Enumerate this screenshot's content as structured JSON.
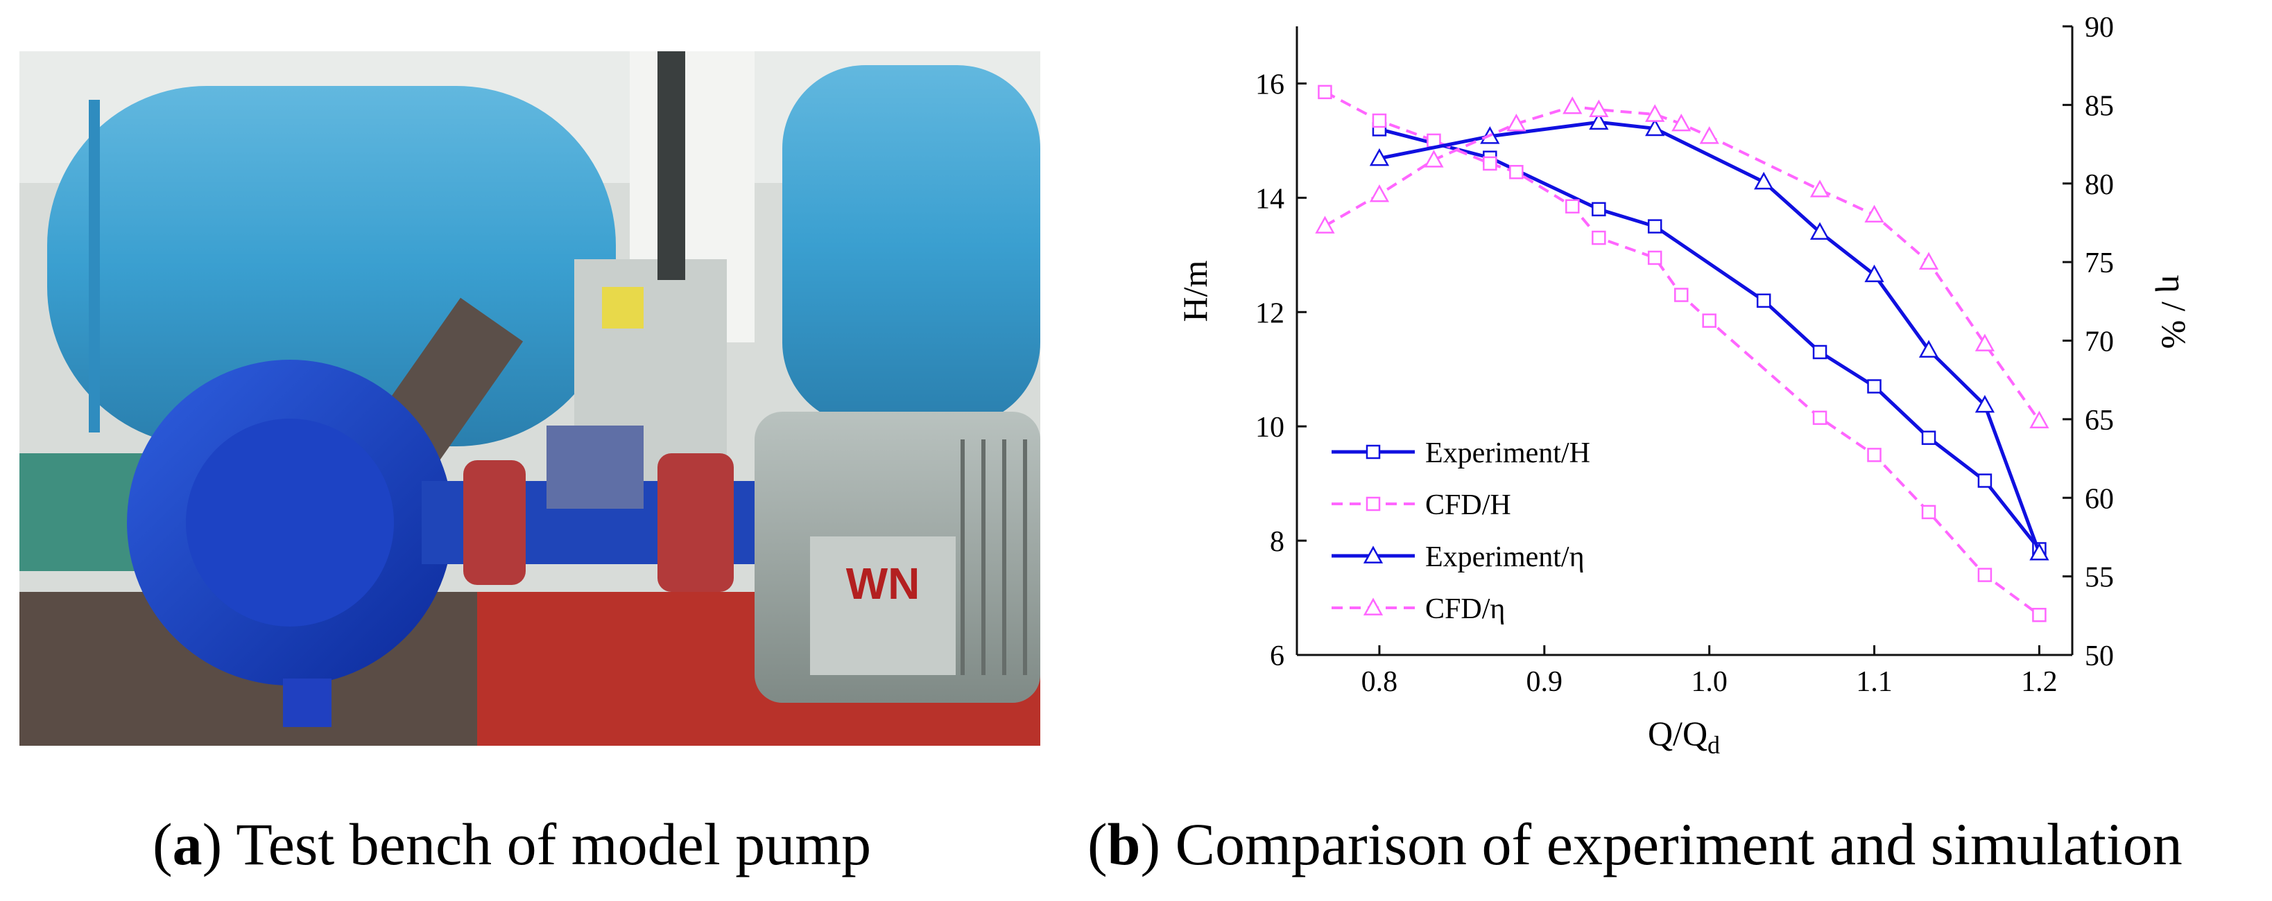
{
  "photo": {
    "description_icon": "pump-test-bench-photo",
    "motor_label": "WN"
  },
  "captions": {
    "a_letter": "a",
    "a_text": "Test bench of model pump",
    "b_letter": "b",
    "b_text": "Comparison of experiment and simulation"
  },
  "chart_data": {
    "type": "line",
    "xlabel_main": "Q/Q",
    "xlabel_sub": "d",
    "ylabel_left": "H/m",
    "ylabel_right": "η / %",
    "xlim": [
      0.75,
      1.22
    ],
    "ylim_left": [
      6,
      17
    ],
    "ylim_right": [
      50,
      90
    ],
    "x_ticks": [
      "0.8",
      "0.9",
      "1.0",
      "1.1",
      "1.2"
    ],
    "x_tick_values": [
      0.8,
      0.9,
      1.0,
      1.1,
      1.2
    ],
    "y_left_ticks": [
      "6",
      "8",
      "10",
      "12",
      "14",
      "16"
    ],
    "y_left_tick_values": [
      6,
      8,
      10,
      12,
      14,
      16
    ],
    "y_right_ticks": [
      "50",
      "55",
      "60",
      "65",
      "70",
      "75",
      "80",
      "85",
      "90"
    ],
    "y_right_tick_values": [
      50,
      55,
      60,
      65,
      70,
      75,
      80,
      85,
      90
    ],
    "series": [
      {
        "name": "Experiment/H",
        "axis": "left",
        "marker": "square",
        "color": "#1010e0",
        "dashed": false,
        "x": [
          0.8,
          0.867,
          0.933,
          0.967,
          1.033,
          1.067,
          1.1,
          1.133,
          1.167,
          1.2
        ],
        "y": [
          15.2,
          14.7,
          13.8,
          13.5,
          12.2,
          11.3,
          10.7,
          9.8,
          9.05,
          7.85
        ]
      },
      {
        "name": "CFD/H",
        "axis": "left",
        "marker": "square",
        "color": "#ff66ff",
        "dashed": true,
        "x": [
          0.767,
          0.8,
          0.833,
          0.867,
          0.883,
          0.917,
          0.933,
          0.967,
          0.983,
          1.0,
          1.067,
          1.1,
          1.133,
          1.167,
          1.2
        ],
        "y": [
          15.85,
          15.35,
          15.0,
          14.6,
          14.45,
          13.85,
          13.3,
          12.95,
          12.3,
          11.85,
          10.15,
          9.5,
          8.5,
          7.4,
          6.7
        ]
      },
      {
        "name": "Experiment/η",
        "axis": "right",
        "marker": "triangle",
        "color": "#1010e0",
        "dashed": false,
        "x": [
          0.8,
          0.867,
          0.933,
          0.967,
          1.033,
          1.067,
          1.1,
          1.133,
          1.167,
          1.2
        ],
        "y": [
          81.6,
          83.0,
          83.9,
          83.5,
          80.1,
          76.9,
          74.2,
          69.4,
          65.9,
          56.5
        ]
      },
      {
        "name": "CFD/η",
        "axis": "right",
        "marker": "triangle",
        "color": "#ff66ff",
        "dashed": true,
        "x": [
          0.767,
          0.8,
          0.833,
          0.883,
          0.917,
          0.933,
          0.967,
          0.983,
          1.0,
          1.067,
          1.1,
          1.133,
          1.167,
          1.2
        ],
        "y": [
          77.3,
          79.3,
          81.5,
          83.8,
          84.9,
          84.7,
          84.4,
          83.8,
          83.0,
          79.6,
          78.0,
          75.0,
          69.8,
          64.9
        ]
      }
    ],
    "legend": [
      "Experiment/H",
      "CFD/H",
      "Experiment/η",
      "CFD/η"
    ],
    "legend_position": "lower-left"
  }
}
